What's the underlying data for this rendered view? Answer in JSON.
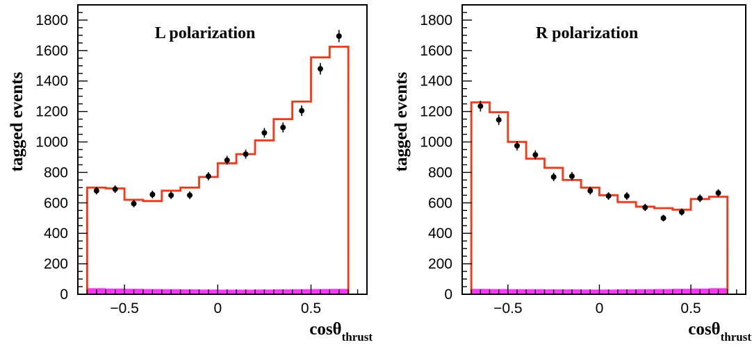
{
  "chart_data": [
    {
      "type": "histogram",
      "title": "L polarization",
      "xlabel": "cosθ",
      "xlabel_sub": "thrust",
      "ylabel": "tagged events",
      "xlim": [
        -0.75,
        0.8
      ],
      "ylim": [
        0,
        1900
      ],
      "x_ticks": [
        -0.5,
        0,
        0.5
      ],
      "x_tick_labels": [
        "−0.5",
        "0",
        "0.5"
      ],
      "y_ticks": [
        0,
        200,
        400,
        600,
        800,
        1000,
        1200,
        1400,
        1600,
        1800
      ],
      "colors": {
        "mc": "#ff3311",
        "background": "#ff33ff",
        "data": "#000000"
      },
      "bin_edges": [
        -0.7,
        -0.6,
        -0.5,
        -0.4,
        -0.3,
        -0.2,
        -0.1,
        0.0,
        0.1,
        0.2,
        0.3,
        0.4,
        0.5,
        0.6,
        0.7
      ],
      "series": [
        {
          "kind": "mc_histogram",
          "values": [
            700,
            695,
            620,
            612,
            680,
            700,
            770,
            860,
            920,
            1010,
            1150,
            1265,
            1555,
            1625
          ]
        },
        {
          "kind": "background",
          "values": [
            40,
            38,
            36,
            34,
            33,
            32,
            31,
            30,
            30,
            31,
            32,
            33,
            34,
            35
          ]
        },
        {
          "kind": "data_points",
          "x": [
            -0.65,
            -0.55,
            -0.45,
            -0.35,
            -0.25,
            -0.15,
            -0.05,
            0.05,
            0.15,
            0.25,
            0.35,
            0.45,
            0.55,
            0.65
          ],
          "values": [
            680,
            690,
            595,
            655,
            650,
            650,
            775,
            880,
            920,
            1060,
            1095,
            1205,
            1480,
            1695
          ],
          "errors": [
            25,
            25,
            24,
            25,
            25,
            25,
            27,
            29,
            30,
            32,
            33,
            35,
            38,
            40
          ]
        }
      ]
    },
    {
      "type": "histogram",
      "title": "R polarization",
      "xlabel": "cosθ",
      "xlabel_sub": "thrust",
      "ylabel": "tagged events",
      "xlim": [
        -0.75,
        0.8
      ],
      "ylim": [
        0,
        1900
      ],
      "x_ticks": [
        -0.5,
        0,
        0.5
      ],
      "x_tick_labels": [
        "−0.5",
        "0",
        "0.5"
      ],
      "y_ticks": [
        0,
        200,
        400,
        600,
        800,
        1000,
        1200,
        1400,
        1600,
        1800
      ],
      "colors": {
        "mc": "#ff3311",
        "background": "#ff33ff",
        "data": "#000000"
      },
      "bin_edges": [
        -0.7,
        -0.6,
        -0.5,
        -0.4,
        -0.3,
        -0.2,
        -0.1,
        0.0,
        0.1,
        0.2,
        0.3,
        0.4,
        0.5,
        0.6,
        0.7
      ],
      "series": [
        {
          "kind": "mc_histogram",
          "values": [
            1260,
            1195,
            1000,
            890,
            830,
            750,
            700,
            650,
            605,
            575,
            565,
            555,
            625,
            640
          ]
        },
        {
          "kind": "background",
          "values": [
            35,
            34,
            33,
            33,
            32,
            32,
            31,
            31,
            32,
            33,
            34,
            36,
            38,
            40
          ]
        },
        {
          "kind": "data_points",
          "x": [
            -0.65,
            -0.55,
            -0.45,
            -0.35,
            -0.25,
            -0.15,
            -0.05,
            0.05,
            0.15,
            0.25,
            0.35,
            0.45,
            0.55,
            0.65
          ],
          "values": [
            1235,
            1145,
            975,
            915,
            770,
            775,
            680,
            645,
            645,
            570,
            500,
            540,
            630,
            665
          ],
          "errors": [
            35,
            34,
            31,
            30,
            28,
            28,
            26,
            25,
            25,
            24,
            22,
            23,
            25,
            25
          ]
        }
      ]
    }
  ]
}
